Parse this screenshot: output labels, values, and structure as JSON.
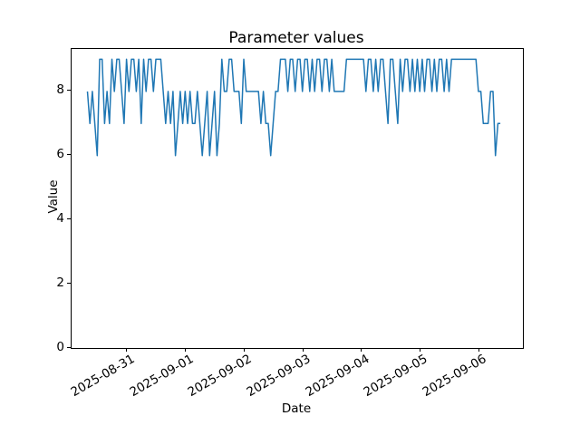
{
  "figure": {
    "title": "Parameter values",
    "xlabel": "Date",
    "ylabel": "Value"
  },
  "chart_data": {
    "type": "line",
    "title": "Parameter values",
    "xlabel": "Date",
    "ylabel": "Value",
    "line_color": "#1f77b4",
    "background_color": "#ffffff",
    "grid": false,
    "legend": null,
    "x_start": "2025-08-30 08:00",
    "x_interval_hours": 1,
    "x_end": "2025-09-06 09:00",
    "x_tick_labels": [
      "2025-08-31",
      "2025-09-01",
      "2025-09-02",
      "2025-09-03",
      "2025-09-04",
      "2025-09-05",
      "2025-09-06"
    ],
    "y_ticks": [
      0,
      2,
      4,
      6,
      8
    ],
    "ylim": [
      0,
      9.33
    ],
    "values": [
      8,
      7,
      8,
      7,
      6,
      9,
      9,
      7,
      8,
      7,
      9,
      8,
      9,
      9,
      8,
      7,
      9,
      8,
      9,
      9,
      8,
      9,
      7,
      9,
      8,
      9,
      9,
      8,
      9,
      9,
      9,
      8,
      7,
      8,
      7,
      8,
      6,
      7,
      8,
      7,
      8,
      7,
      8,
      7,
      7,
      8,
      7,
      6,
      7,
      8,
      6,
      7,
      8,
      6,
      7,
      9,
      8,
      8,
      9,
      9,
      8,
      8,
      8,
      7,
      9,
      8,
      8,
      8,
      8,
      8,
      8,
      7,
      8,
      7,
      7,
      6,
      7,
      8,
      8,
      9,
      9,
      9,
      8,
      9,
      9,
      8,
      9,
      9,
      8,
      9,
      9,
      8,
      9,
      8,
      9,
      9,
      8,
      9,
      9,
      8,
      9,
      8,
      8,
      8,
      8,
      8,
      9,
      9,
      9,
      9,
      9,
      9,
      9,
      9,
      8,
      9,
      9,
      8,
      9,
      8,
      9,
      9,
      8,
      7,
      9,
      9,
      8,
      7,
      9,
      8,
      9,
      9,
      8,
      9,
      8,
      9,
      8,
      9,
      8,
      9,
      9,
      8,
      9,
      8,
      9,
      9,
      8,
      9,
      8,
      9,
      9,
      9,
      9,
      9,
      9,
      9,
      9,
      9,
      9,
      9,
      8,
      8,
      7,
      7,
      7,
      8,
      8,
      6,
      7,
      7
    ]
  }
}
